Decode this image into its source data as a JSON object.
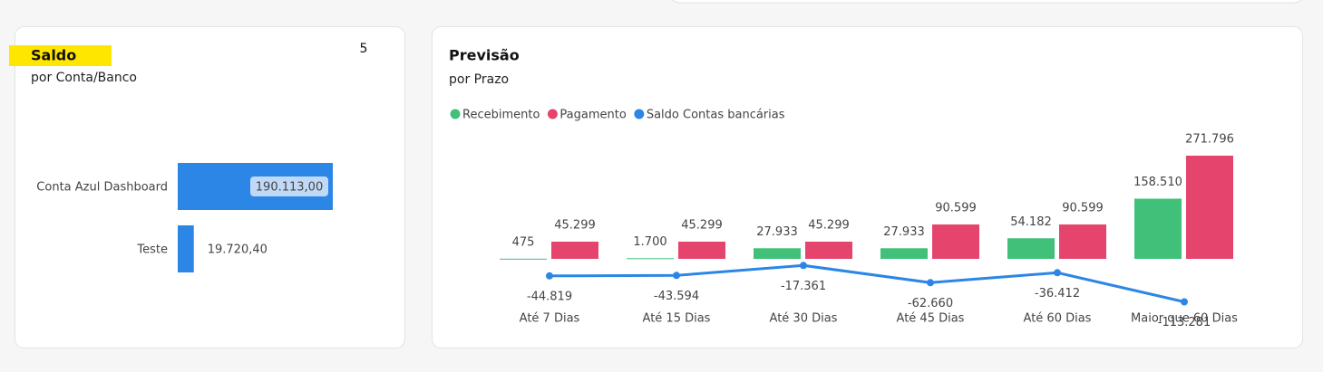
{
  "chart_data": [
    {
      "type": "hbar",
      "title": "Saldo",
      "subtitle": "por Conta/Banco",
      "annotation": "5",
      "categories": [
        "Conta Azul Dashboard",
        "Teste"
      ],
      "values": [
        190113.0,
        19720.4
      ],
      "value_labels": [
        "190.113,00",
        "19.720,40"
      ],
      "color": "#2b86e6"
    },
    {
      "type": "combo",
      "title": "Previsão",
      "subtitle": "por Prazo",
      "categories": [
        "Até 7 Dias",
        "Até 15 Dias",
        "Até 30 Dias",
        "Até 45 Dias",
        "Até 60 Dias",
        "Maior que 60 Dias"
      ],
      "series": [
        {
          "name": "Recebimento",
          "color": "#41c07a",
          "kind": "bar",
          "values": [
            475,
            1700,
            27933,
            27933,
            54182,
            158510
          ],
          "value_labels": [
            "475",
            "1.700",
            "27.933",
            "27.933",
            "54.182",
            "158.510"
          ]
        },
        {
          "name": "Pagamento",
          "color": "#e5446d",
          "kind": "bar",
          "values": [
            45299,
            45299,
            45299,
            90599,
            90599,
            271796
          ],
          "value_labels": [
            "45.299",
            "45.299",
            "45.299",
            "90.599",
            "90.599",
            "271.796"
          ]
        },
        {
          "name": "Saldo Contas bancárias",
          "color": "#2b86e6",
          "kind": "line",
          "values": [
            -44819,
            -43594,
            -17361,
            -62660,
            -36412,
            -113281
          ],
          "value_labels": [
            "-44.819",
            "-43.594",
            "-17.361",
            "-62.660",
            "-36.412",
            "-113.281"
          ]
        }
      ]
    }
  ]
}
